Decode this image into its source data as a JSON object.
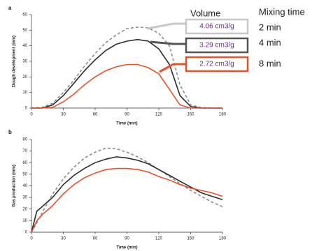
{
  "chart_data": [
    {
      "type": "line",
      "panel_label": "a",
      "annotation_title": "Volume",
      "legend_title": "Mixing time",
      "x_label": "Time (min)",
      "y_label": "Dough development (mm)",
      "x": [
        0,
        10,
        20,
        30,
        40,
        50,
        60,
        70,
        80,
        90,
        100,
        110,
        120,
        130,
        140,
        150,
        160,
        170,
        180
      ],
      "series": [
        {
          "name": "2 min",
          "color": "#8c8c8c",
          "dashed": true,
          "box_color": "#c8c8c8",
          "volume_label": "4.06 cm3/g",
          "values": [
            0,
            0.5,
            3,
            10,
            18,
            27,
            35,
            42,
            47,
            51,
            52,
            51.5,
            48,
            40,
            15,
            2,
            0.3,
            0,
            0
          ]
        },
        {
          "name": "4 min",
          "color": "#2b2b2b",
          "dashed": false,
          "box_color": "#555555",
          "volume_label": "3.29 cm3/g",
          "values": [
            0,
            0,
            2,
            8,
            16,
            24,
            31,
            37,
            41,
            43,
            44,
            43,
            38,
            28,
            8,
            1,
            0,
            0,
            0
          ]
        },
        {
          "name": "8 min",
          "color": "#e8522a",
          "dashed": false,
          "box_color": "#e8522a",
          "volume_label": "2.72 cm3/g",
          "values": [
            0,
            0,
            0.5,
            4,
            9,
            15,
            20,
            24,
            26.5,
            28,
            28,
            26,
            22,
            12,
            2,
            0,
            0,
            0,
            0
          ]
        }
      ],
      "xlim": [
        0,
        180
      ],
      "xticks": [
        0,
        30,
        60,
        90,
        120,
        150,
        180
      ],
      "ylim": [
        0,
        60
      ],
      "yticks": [
        0,
        10,
        20,
        30,
        40,
        50,
        60
      ]
    },
    {
      "type": "line",
      "panel_label": "b",
      "x_label": "Time (min)",
      "y_label": "Gas production (mm)",
      "x": [
        0,
        5,
        10,
        20,
        30,
        40,
        50,
        60,
        70,
        80,
        90,
        100,
        110,
        120,
        130,
        140,
        150,
        160,
        170,
        180
      ],
      "series": [
        {
          "name": "2 min",
          "color": "#8c8c8c",
          "dashed": true,
          "values": [
            0,
            8,
            17,
            33,
            46,
            56,
            64,
            69,
            72.5,
            72,
            69,
            65,
            60,
            54,
            48,
            42,
            36,
            31,
            26,
            22
          ]
        },
        {
          "name": "4 min",
          "color": "#2b2b2b",
          "dashed": false,
          "values": [
            0,
            18,
            22,
            30,
            41,
            49,
            55,
            60,
            63,
            65,
            64,
            62,
            59,
            54,
            49,
            44,
            39,
            34,
            31,
            28
          ]
        },
        {
          "name": "8 min",
          "color": "#e8522a",
          "dashed": false,
          "values": [
            0,
            10,
            15,
            23,
            33,
            41,
            47,
            51,
            54,
            55,
            55,
            54,
            52,
            48,
            45,
            41,
            38,
            36,
            34,
            31
          ]
        }
      ],
      "xlim": [
        0,
        180
      ],
      "xticks": [
        0,
        30,
        60,
        90,
        120,
        150,
        180
      ],
      "ylim": [
        0,
        80
      ],
      "yticks": [
        0,
        10,
        20,
        30,
        40,
        50,
        60,
        70,
        80
      ]
    }
  ]
}
